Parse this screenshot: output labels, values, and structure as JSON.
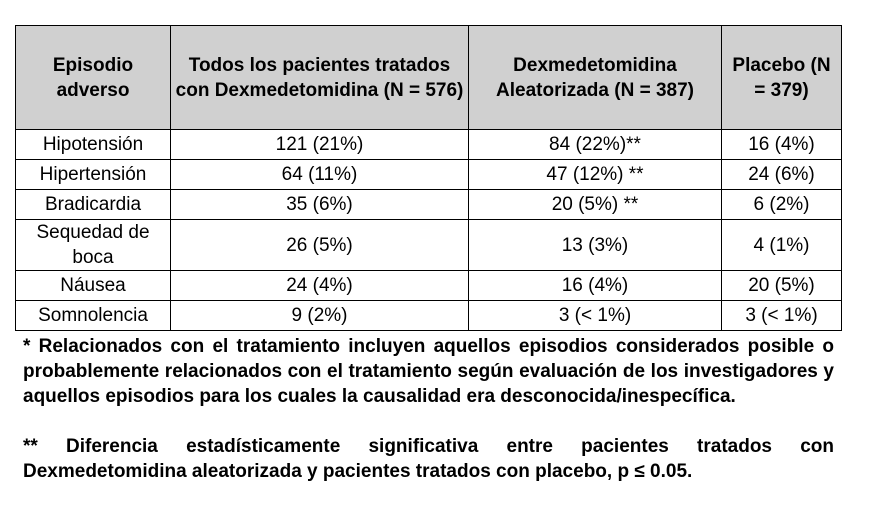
{
  "table": {
    "headers": [
      "Episodio adverso",
      "Todos los pacientes tratados con Dexmedetomidina (N = 576)",
      "Dexmedetomidina Aleatorizada (N = 387)",
      "Placebo (N = 379)"
    ],
    "rows": [
      [
        "Hipotensión",
        "121 (21%)",
        "84 (22%)**",
        "16 (4%)"
      ],
      [
        "Hipertensión",
        "64 (11%)",
        "47 (12%) **",
        "24 (6%)"
      ],
      [
        "Bradicardia",
        "35 (6%)",
        "20 (5%) **",
        "6 (2%)"
      ],
      [
        "Sequedad de boca",
        "26 (5%)",
        "13 (3%)",
        "4 (1%)"
      ],
      [
        "Náusea",
        "24 (4%)",
        "16 (4%)",
        "20 (5%)"
      ],
      [
        "Somnolencia",
        "9 (2%)",
        "3 (< 1%)",
        "3 (< 1%)"
      ]
    ]
  },
  "footnotes": [
    "* Relacionados con el tratamiento incluyen aquellos episodios considerados posible o probablemente relacionados con el tratamiento según evaluación de los investigadores y aquellos episodios para los cuales la causalidad era desconocida/inespecífica.",
    "** Diferencia estadísticamente significativa entre pacientes tratados con Dexmedetomidina aleatorizada y pacientes tratados con placebo, p ≤ 0.05."
  ],
  "colors": {
    "header_background": "#d0d0d0",
    "border": "#000000",
    "text": "#000000"
  }
}
